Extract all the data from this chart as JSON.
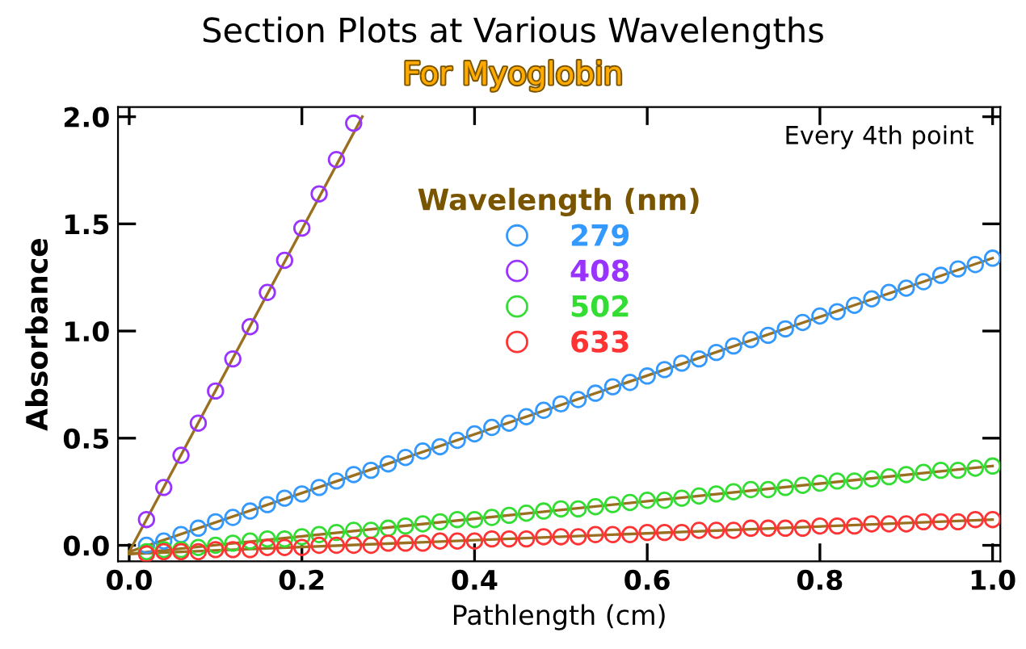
{
  "chart_data": {
    "type": "scatter",
    "title": "Section Plots at Various Wavelengths",
    "subtitle": "For Myoglobin",
    "xlabel": "Pathlength (cm)",
    "ylabel": "Absorbance",
    "legend_title": "Wavelength (nm)",
    "annotations": [
      "Every 4th point"
    ],
    "x": [
      0.02,
      0.04,
      0.06,
      0.08,
      0.1,
      0.12,
      0.14,
      0.16,
      0.18,
      0.2,
      0.22,
      0.24,
      0.26,
      0.28,
      0.3,
      0.32,
      0.34,
      0.36,
      0.38,
      0.4,
      0.42,
      0.44,
      0.46,
      0.48,
      0.5,
      0.52,
      0.54,
      0.56,
      0.58,
      0.6,
      0.62,
      0.64,
      0.66,
      0.68,
      0.7,
      0.72,
      0.74,
      0.76,
      0.78,
      0.8,
      0.82,
      0.84,
      0.86,
      0.88,
      0.9,
      0.92,
      0.94,
      0.96,
      0.98,
      1.0
    ],
    "series": [
      {
        "name": "279",
        "color": "#3399ff",
        "values": [
          0.0,
          0.02,
          0.05,
          0.08,
          0.11,
          0.13,
          0.16,
          0.19,
          0.22,
          0.24,
          0.27,
          0.3,
          0.33,
          0.35,
          0.38,
          0.41,
          0.44,
          0.46,
          0.49,
          0.52,
          0.55,
          0.57,
          0.6,
          0.63,
          0.66,
          0.68,
          0.71,
          0.74,
          0.76,
          0.79,
          0.82,
          0.85,
          0.87,
          0.9,
          0.93,
          0.96,
          0.98,
          1.01,
          1.04,
          1.07,
          1.09,
          1.12,
          1.15,
          1.18,
          1.2,
          1.23,
          1.26,
          1.29,
          1.31,
          1.34
        ]
      },
      {
        "name": "408",
        "color": "#9933ff",
        "x": [
          0.02,
          0.04,
          0.06,
          0.08,
          0.1,
          0.12,
          0.14,
          0.16,
          0.18,
          0.2,
          0.22,
          0.24,
          0.26
        ],
        "values": [
          0.12,
          0.27,
          0.42,
          0.57,
          0.72,
          0.87,
          1.02,
          1.18,
          1.33,
          1.48,
          1.64,
          1.8,
          1.97
        ]
      },
      {
        "name": "502",
        "color": "#33dd33",
        "values": [
          -0.03,
          -0.02,
          -0.02,
          -0.01,
          0.0,
          0.01,
          0.02,
          0.03,
          0.03,
          0.04,
          0.05,
          0.06,
          0.07,
          0.07,
          0.08,
          0.09,
          0.1,
          0.11,
          0.12,
          0.12,
          0.13,
          0.14,
          0.15,
          0.16,
          0.17,
          0.17,
          0.18,
          0.19,
          0.2,
          0.21,
          0.21,
          0.22,
          0.23,
          0.24,
          0.25,
          0.26,
          0.26,
          0.27,
          0.28,
          0.29,
          0.3,
          0.3,
          0.31,
          0.32,
          0.33,
          0.34,
          0.35,
          0.35,
          0.36,
          0.37
        ]
      },
      {
        "name": "633",
        "color": "#ff3333",
        "values": [
          -0.04,
          -0.03,
          -0.03,
          -0.03,
          -0.02,
          -0.02,
          -0.02,
          -0.01,
          -0.01,
          -0.01,
          0.0,
          0.0,
          0.0,
          0.0,
          0.01,
          0.01,
          0.01,
          0.02,
          0.02,
          0.02,
          0.03,
          0.03,
          0.03,
          0.04,
          0.04,
          0.04,
          0.05,
          0.05,
          0.05,
          0.06,
          0.06,
          0.06,
          0.07,
          0.07,
          0.07,
          0.08,
          0.08,
          0.08,
          0.08,
          0.09,
          0.09,
          0.09,
          0.1,
          0.1,
          0.1,
          0.11,
          0.11,
          0.11,
          0.12,
          0.12
        ]
      },
      {
        "type": "line",
        "color": "#9a7020",
        "marker": "none",
        "x": [
          0,
          0.27
        ],
        "values": [
          -0.03,
          2.0
        ]
      },
      {
        "type": "line",
        "color": "#9a7020",
        "marker": "none",
        "x": [
          0,
          1.0
        ],
        "values": [
          -0.03,
          1.34
        ]
      },
      {
        "type": "line",
        "color": "#9a7020",
        "marker": "none",
        "x": [
          0,
          1.0
        ],
        "values": [
          -0.04,
          0.37
        ]
      },
      {
        "type": "line",
        "color": "#9a7020",
        "marker": "none",
        "x": [
          0,
          1.0
        ],
        "values": [
          -0.04,
          0.12
        ]
      }
    ],
    "marker": "circle",
    "grid": false,
    "legend": "top",
    "xlim": [
      -0.013,
      1.009
    ],
    "ylim": [
      -0.075,
      2.045
    ],
    "xticks": [
      {
        "value": 0,
        "label": "0.0"
      },
      0.2,
      0.4,
      0.6,
      0.8,
      {
        "value": 1,
        "label": "1.0"
      }
    ],
    "yticks": [
      {
        "value": 0,
        "label": "0.0"
      },
      0.5,
      {
        "value": 1,
        "label": "1.0"
      },
      1.5,
      {
        "value": 2,
        "label": "2.0"
      }
    ]
  }
}
